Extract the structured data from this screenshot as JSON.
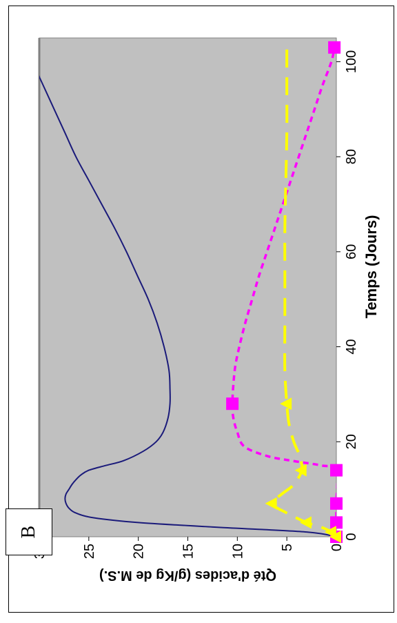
{
  "panel_label": "B",
  "chart_data": {
    "type": "line",
    "xlabel": "Temps (Jours)",
    "ylabel": "Qté d'acides (g/Kg de M.S.)",
    "xlim": [
      0,
      105
    ],
    "ylim": [
      0,
      30
    ],
    "x_ticks": [
      "0",
      "20",
      "40",
      "60",
      "80",
      "100"
    ],
    "y_ticks": [
      "0",
      "5",
      "10",
      "15",
      "20",
      "25",
      "30"
    ],
    "grid": false,
    "background": "#c0c0c0",
    "series": [
      {
        "style": "solid",
        "color": "#1a1a7a",
        "x": [
          0,
          1,
          2,
          3,
          4,
          5,
          6,
          7,
          8,
          9,
          10,
          11,
          12,
          13,
          14,
          15,
          16,
          18,
          20,
          22,
          25,
          28,
          31,
          35,
          40,
          45,
          50,
          55,
          60,
          65,
          70,
          75,
          80,
          85,
          90,
          95,
          100,
          103
        ],
        "y": [
          0,
          3,
          12,
          20,
          24.5,
          26.3,
          27.0,
          27.3,
          27.4,
          27.3,
          27.0,
          26.7,
          26.3,
          25.8,
          25.0,
          23.3,
          21.5,
          19.5,
          18.2,
          17.5,
          17.0,
          16.8,
          16.8,
          16.9,
          17.4,
          18.1,
          19.0,
          20.1,
          21.2,
          22.4,
          23.7,
          25.0,
          26.3,
          27.4,
          28.5,
          29.6,
          30.7,
          31.3
        ]
      },
      {
        "style": "dashed",
        "color": "#ff00ff",
        "marker": "square",
        "x": [
          0,
          1,
          3,
          7,
          14,
          15,
          16,
          17,
          19,
          22,
          25,
          28,
          32,
          36,
          40,
          45,
          50,
          55,
          60,
          65,
          70,
          75,
          80,
          85,
          90,
          95,
          100,
          103
        ],
        "y": [
          0,
          0,
          0,
          0,
          0,
          1.5,
          4.5,
          7.0,
          9.3,
          10.0,
          10.4,
          10.5,
          10.4,
          10.2,
          9.8,
          9.2,
          8.5,
          7.8,
          7.0,
          6.2,
          5.4,
          4.6,
          3.8,
          3.0,
          2.2,
          1.4,
          0.5,
          0.2
        ],
        "marker_points": [
          [
            0,
            0
          ],
          [
            3,
            0
          ],
          [
            7,
            0
          ],
          [
            14,
            0
          ],
          [
            28,
            10.5
          ],
          [
            103,
            0.2
          ]
        ]
      },
      {
        "style": "long-dash",
        "color": "#ffff00",
        "marker": "triangle",
        "x": [
          0,
          1,
          2,
          3,
          5,
          7,
          9,
          11,
          14,
          17,
          20,
          24,
          28,
          35,
          45,
          55,
          65,
          75,
          85,
          95,
          103
        ],
        "y": [
          0,
          0.5,
          1.5,
          3,
          5,
          6.5,
          5.5,
          4.3,
          3.5,
          3.7,
          4.3,
          4.8,
          5.0,
          5.2,
          5.2,
          5.2,
          5.2,
          5.1,
          5.0,
          5.0,
          5.0
        ],
        "marker_points": [
          [
            0,
            0
          ],
          [
            1,
            0.5
          ],
          [
            3,
            3
          ],
          [
            7,
            6.5
          ],
          [
            14,
            3.5
          ],
          [
            28,
            5.0
          ]
        ]
      }
    ]
  }
}
